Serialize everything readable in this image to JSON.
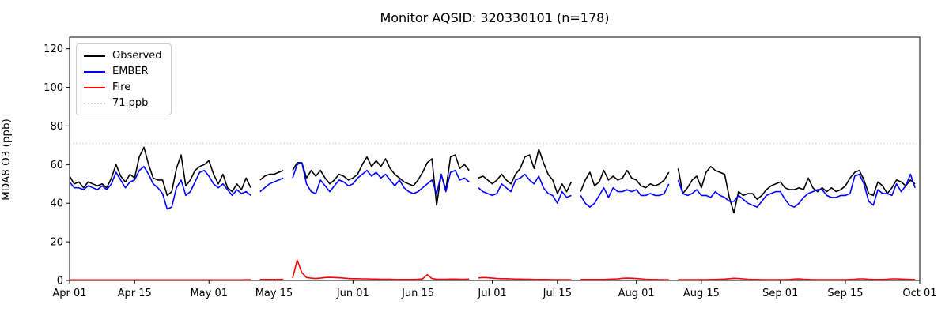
{
  "chart_data": {
    "type": "line",
    "title": "Monitor AQSID: 320330101 (n=178)",
    "ylabel": "MDA8 O3 (ppb)",
    "xlabel": "",
    "grid": false,
    "legend_position": "upper left",
    "n_valid_points": 178,
    "ylim": [
      0,
      126
    ],
    "yticks": [
      0,
      20,
      40,
      60,
      80,
      100,
      120
    ],
    "x_unit": "daily values, day 0 = Apr 01 through day 182 = Sep 30; null = missing day",
    "x_axis_span_days": 183,
    "xticks": [
      {
        "day": 0,
        "label": "Apr 01"
      },
      {
        "day": 14,
        "label": "Apr 15"
      },
      {
        "day": 30,
        "label": "May 01"
      },
      {
        "day": 44,
        "label": "May 15"
      },
      {
        "day": 61,
        "label": "Jun 01"
      },
      {
        "day": 75,
        "label": "Jun 15"
      },
      {
        "day": 91,
        "label": "Jul 01"
      },
      {
        "day": 105,
        "label": "Jul 15"
      },
      {
        "day": 122,
        "label": "Aug 01"
      },
      {
        "day": 136,
        "label": "Aug 15"
      },
      {
        "day": 153,
        "label": "Sep 01"
      },
      {
        "day": 167,
        "label": "Sep 15"
      },
      {
        "day": 183,
        "label": "Oct 01"
      }
    ],
    "threshold": {
      "label": "71 ppb",
      "value": 71,
      "color": "#d3d3d3",
      "style": "dotted"
    },
    "series": [
      {
        "name": "Observed",
        "color": "#000000",
        "values": [
          54,
          50,
          51,
          48,
          51,
          50,
          49,
          50,
          48,
          53,
          60,
          54,
          51,
          55,
          53,
          64,
          69,
          60,
          53,
          52,
          52,
          44,
          46,
          58,
          65,
          49,
          52,
          57,
          59,
          60,
          62,
          55,
          50,
          55,
          48,
          46,
          50,
          47,
          53,
          48,
          null,
          52,
          54,
          55,
          55,
          56,
          57,
          null,
          57,
          61,
          61,
          53,
          57,
          54,
          57,
          53,
          50,
          52,
          55,
          54,
          52,
          53,
          55,
          60,
          64,
          59,
          62,
          59,
          63,
          58,
          55,
          53,
          51,
          50,
          49,
          52,
          56,
          61,
          63,
          39,
          55,
          47,
          64,
          65,
          58,
          60,
          57,
          null,
          53,
          54,
          52,
          50,
          52,
          55,
          52,
          50,
          55,
          58,
          64,
          65,
          58,
          68,
          61,
          55,
          52,
          45,
          50,
          46,
          51,
          null,
          46,
          52,
          56,
          49,
          51,
          57,
          52,
          54,
          52,
          53,
          57,
          53,
          52,
          49,
          48,
          50,
          49,
          50,
          52,
          56,
          null,
          58,
          45,
          48,
          52,
          54,
          48,
          56,
          59,
          57,
          56,
          55,
          43,
          35,
          46,
          44,
          45,
          45,
          42,
          44,
          47,
          49,
          50,
          51,
          48,
          47,
          47,
          48,
          47,
          53,
          48,
          46,
          48,
          46,
          48,
          46,
          47,
          49,
          53,
          56,
          57,
          52,
          45,
          44,
          51,
          49,
          45,
          48,
          52,
          51,
          49,
          52,
          50
        ]
      },
      {
        "name": "EMBER",
        "color": "#0000ff",
        "values": [
          51,
          48,
          48,
          47,
          49,
          48,
          47,
          49,
          47,
          50,
          56,
          52,
          48,
          51,
          52,
          57,
          59,
          55,
          50,
          48,
          45,
          37,
          38,
          48,
          52,
          44,
          46,
          51,
          56,
          57,
          54,
          50,
          48,
          50,
          47,
          44,
          47,
          45,
          46,
          44,
          null,
          46,
          48,
          50,
          51,
          52,
          53,
          null,
          53,
          60,
          61,
          50,
          46,
          45,
          52,
          49,
          46,
          49,
          52,
          51,
          49,
          50,
          53,
          55,
          57,
          54,
          56,
          53,
          55,
          52,
          49,
          52,
          48,
          46,
          45,
          46,
          48,
          50,
          52,
          45,
          55,
          46,
          56,
          57,
          52,
          53,
          51,
          null,
          48,
          46,
          45,
          44,
          45,
          50,
          48,
          46,
          52,
          53,
          55,
          52,
          50,
          54,
          48,
          45,
          44,
          40,
          46,
          43,
          44,
          null,
          44,
          40,
          38,
          40,
          44,
          48,
          43,
          48,
          46,
          46,
          47,
          46,
          47,
          44,
          44,
          45,
          44,
          44,
          45,
          50,
          null,
          52,
          45,
          44,
          45,
          47,
          44,
          44,
          43,
          46,
          44,
          43,
          41,
          41,
          44,
          42,
          40,
          39,
          38,
          41,
          44,
          45,
          46,
          46,
          42,
          39,
          38,
          40,
          43,
          45,
          46,
          47,
          47,
          44,
          43,
          43,
          44,
          44,
          45,
          54,
          55,
          50,
          41,
          39,
          47,
          45,
          45,
          44,
          50,
          46,
          49,
          55,
          48
        ]
      },
      {
        "name": "Fire",
        "color": "#ff0000",
        "values": [
          0.3,
          0.3,
          0.3,
          0.3,
          0.3,
          0.3,
          0.3,
          0.3,
          0.3,
          0.3,
          0.3,
          0.3,
          0.3,
          0.3,
          0.3,
          0.3,
          0.3,
          0.3,
          0.3,
          0.3,
          0.3,
          0.3,
          0.3,
          0.3,
          0.3,
          0.3,
          0.3,
          0.3,
          0.3,
          0.3,
          0.3,
          0.3,
          0.3,
          0.3,
          0.3,
          0.3,
          0.3,
          0.3,
          0.4,
          0.4,
          null,
          0.5,
          0.5,
          0.5,
          0.5,
          0.5,
          0.6,
          null,
          1.2,
          10.5,
          4,
          1.5,
          1.2,
          1,
          1.2,
          1.5,
          1.6,
          1.5,
          1.4,
          1.2,
          1,
          0.9,
          0.9,
          0.8,
          0.8,
          0.7,
          0.7,
          0.6,
          0.6,
          0.6,
          0.5,
          0.5,
          0.5,
          0.5,
          0.5,
          0.6,
          0.8,
          3,
          1,
          0.6,
          0.6,
          0.6,
          0.7,
          0.7,
          0.6,
          0.6,
          0.7,
          null,
          1.3,
          1.5,
          1.4,
          1.2,
          1,
          0.9,
          0.9,
          0.8,
          0.7,
          0.7,
          0.6,
          0.6,
          0.5,
          0.5,
          0.5,
          0.5,
          0.4,
          0.4,
          0.4,
          0.4,
          0.4,
          null,
          0.5,
          0.5,
          0.5,
          0.5,
          0.5,
          0.5,
          0.6,
          0.7,
          0.8,
          1.1,
          1.2,
          1.1,
          1,
          0.8,
          0.6,
          0.5,
          0.5,
          0.4,
          0.4,
          0.4,
          null,
          0.4,
          0.4,
          0.4,
          0.4,
          0.4,
          0.4,
          0.4,
          0.5,
          0.5,
          0.6,
          0.7,
          0.9,
          1.1,
          1,
          0.8,
          0.6,
          0.5,
          0.5,
          0.4,
          0.4,
          0.4,
          0.4,
          0.4,
          0.4,
          0.5,
          0.7,
          0.8,
          0.6,
          0.5,
          0.4,
          0.4,
          0.4,
          0.4,
          0.4,
          0.4,
          0.4,
          0.4,
          0.5,
          0.6,
          0.8,
          0.8,
          0.6,
          0.5,
          0.5,
          0.5,
          0.6,
          0.8,
          0.8,
          0.7,
          0.6,
          0.5,
          0.5
        ]
      }
    ]
  }
}
